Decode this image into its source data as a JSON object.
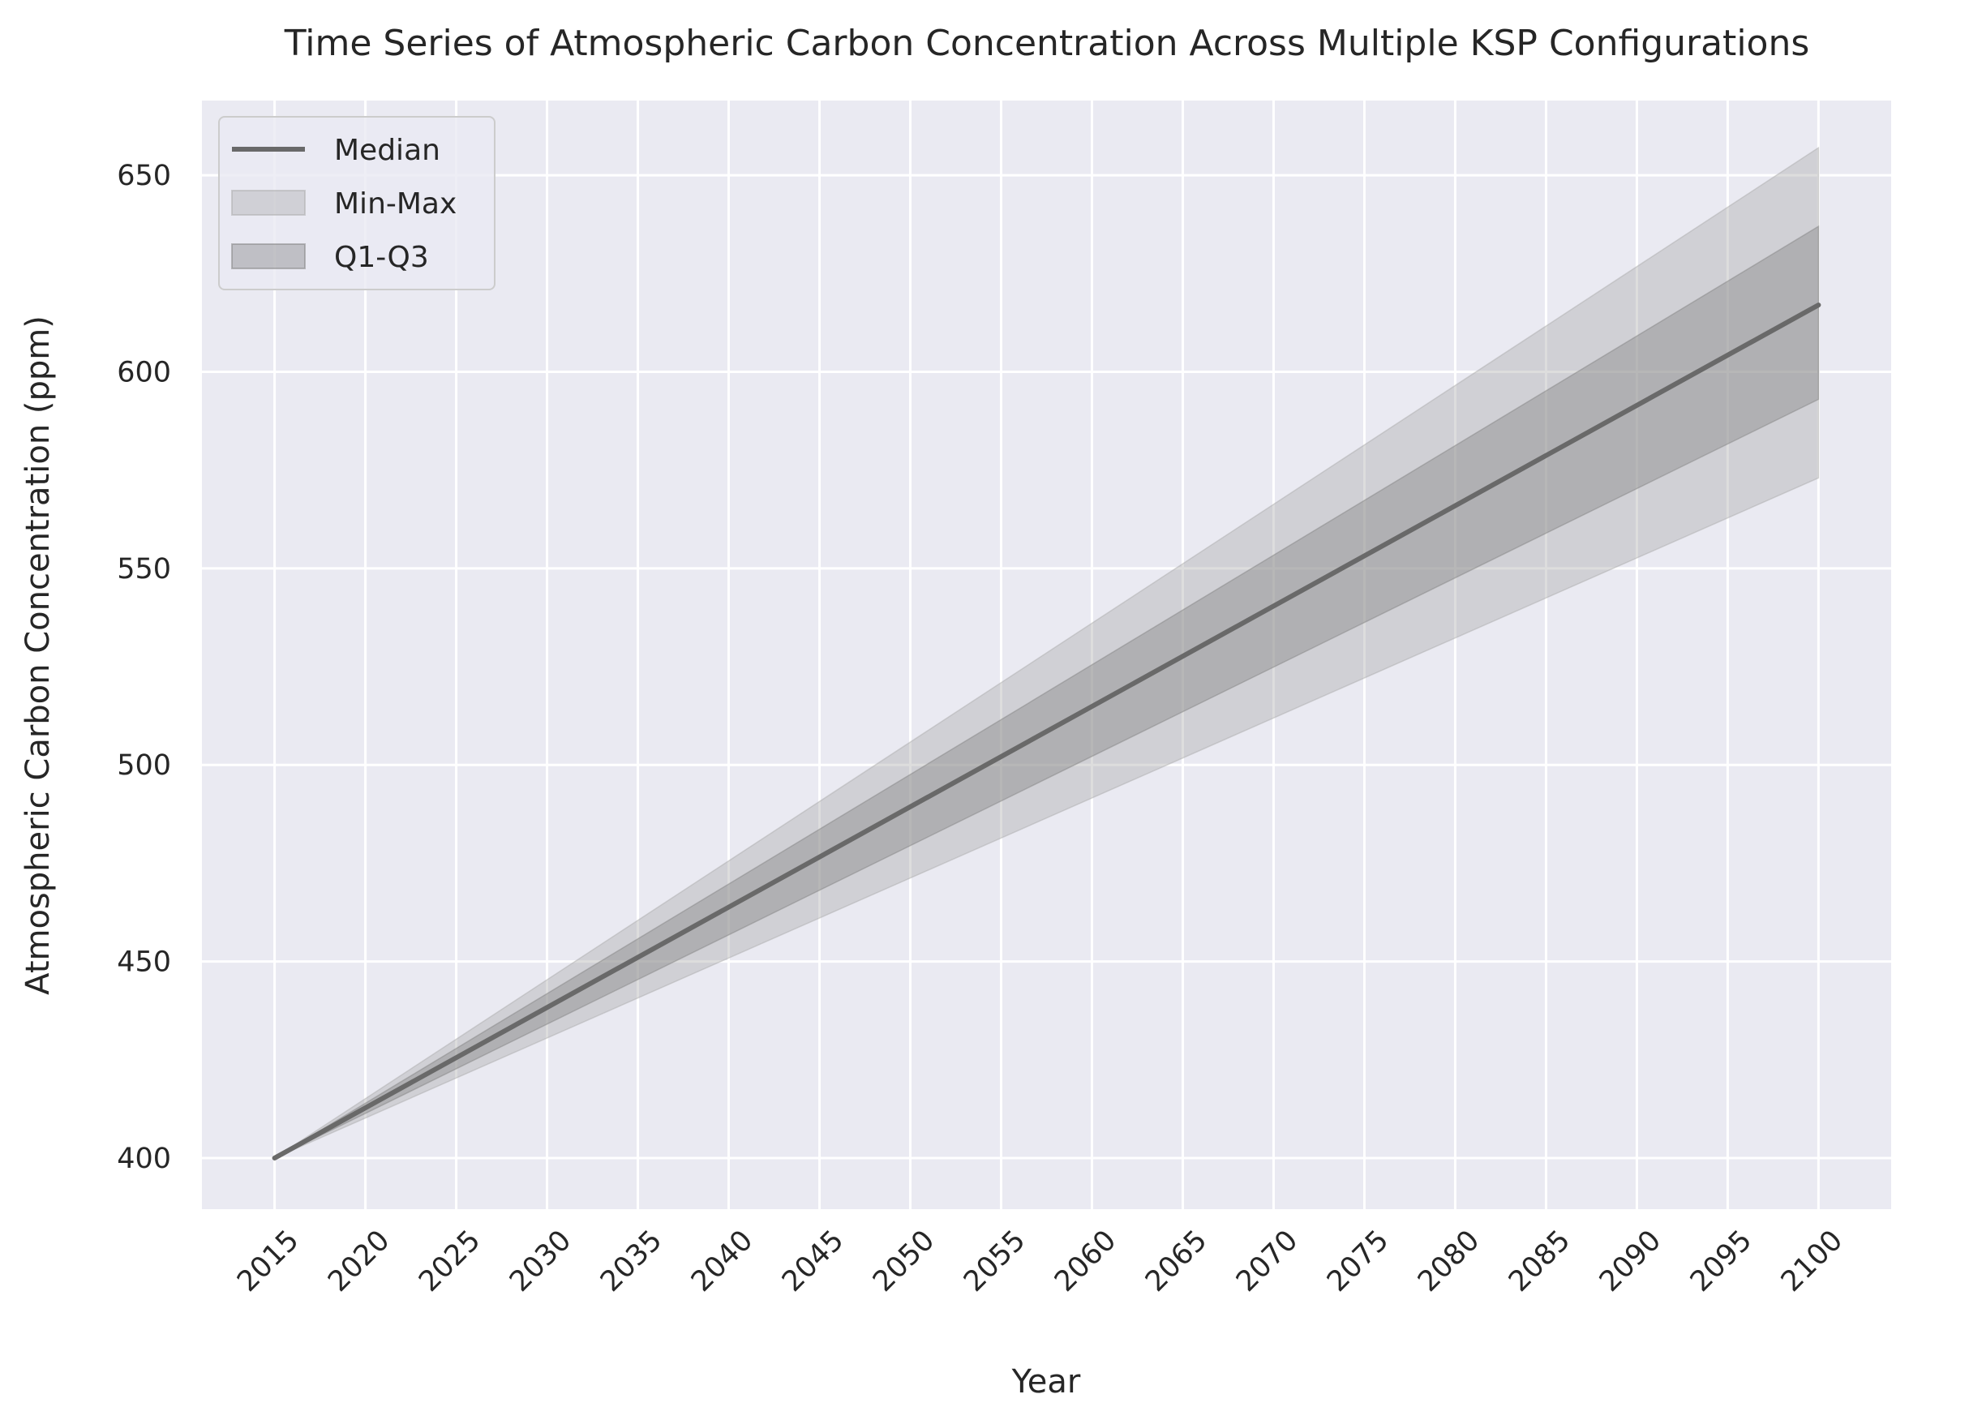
{
  "chart_data": {
    "type": "area",
    "title": "Time Series of Atmospheric Carbon Concentration Across Multiple KSP Configurations",
    "xlabel": "Year",
    "ylabel": "Atmospheric Carbon Concentration (ppm)",
    "xlim": [
      2011,
      2104
    ],
    "ylim": [
      387,
      669
    ],
    "x_ticks": [
      2015,
      2020,
      2025,
      2030,
      2035,
      2040,
      2045,
      2050,
      2055,
      2060,
      2065,
      2070,
      2075,
      2080,
      2085,
      2090,
      2095,
      2100
    ],
    "y_ticks": [
      400,
      450,
      500,
      550,
      600,
      650
    ],
    "grid": true,
    "legend_position": "top-left",
    "background_color": "#eaeaf2",
    "grid_color": "#ffffff",
    "x": [
      2015,
      2100
    ],
    "series": [
      {
        "name": "Median",
        "kind": "line",
        "color": "#696969",
        "values": [
          400,
          617
        ]
      },
      {
        "name": "Min-Max",
        "kind": "band",
        "color": "#a9a9a9",
        "lower": [
          400,
          573
        ],
        "upper": [
          400,
          657
        ]
      },
      {
        "name": "Q1-Q3",
        "kind": "band",
        "color": "#808080",
        "lower": [
          400,
          593
        ],
        "upper": [
          400,
          637
        ]
      }
    ]
  }
}
